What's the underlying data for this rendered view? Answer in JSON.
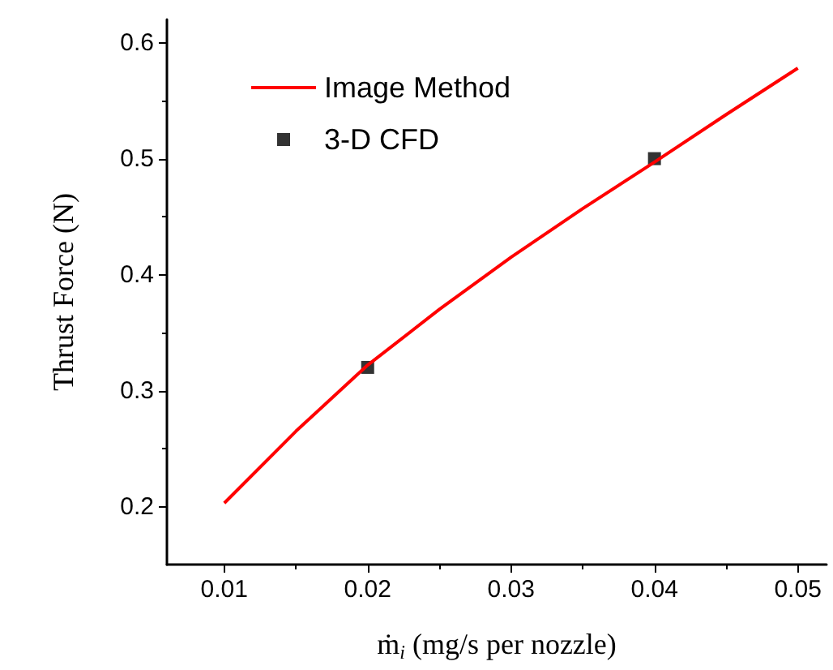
{
  "chart_data": {
    "type": "line",
    "xlabel": "ṁ$_{i}$ (mg/s per nozzle)",
    "ylabel": "Thrust Force (N)",
    "series": [
      {
        "name": "Image Method",
        "color": "#ff0000",
        "marker": "none",
        "x": [
          0.01,
          0.015,
          0.02,
          0.025,
          0.03,
          0.035,
          0.04,
          0.045,
          0.05
        ],
        "values": [
          0.203,
          0.265,
          0.322,
          0.37,
          0.415,
          0.457,
          0.497,
          0.538,
          0.578
        ]
      },
      {
        "name": "3-D CFD",
        "type": "scatter",
        "color": "#000000",
        "marker": "square",
        "x": [
          0.02,
          0.04
        ],
        "values": [
          0.32,
          0.5
        ]
      }
    ],
    "xlim": [
      0.006,
      0.052
    ],
    "xticks": [
      0.01,
      0.02,
      0.03,
      0.04,
      0.05
    ],
    "ylim": [
      0.15,
      0.62
    ],
    "yticks": [
      0.2,
      0.3,
      0.4,
      0.5,
      0.6
    ],
    "grid": false,
    "legend": "top left"
  }
}
